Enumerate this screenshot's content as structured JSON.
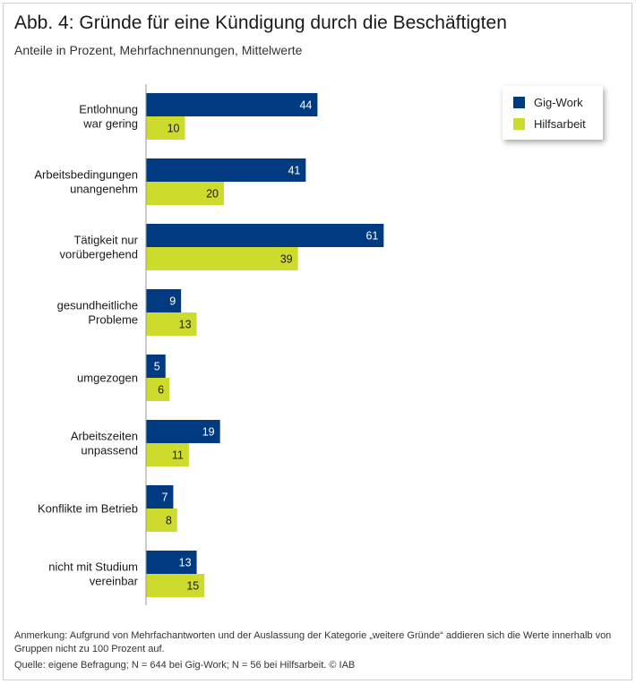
{
  "title": "Abb. 4: Gründe für eine Kündigung durch die Beschäftigten",
  "subtitle": "Anteile in Prozent, Mehrfachnennungen, Mittelwerte",
  "note": "Anmerkung: Aufgrund von Mehrfachantworten und der Auslassung der Kategorie „weitere Gründe“ addieren sich die Werte innerhalb von Gruppen nicht zu 100 Prozent auf.",
  "source": "Quelle: eigene Befragung; N = 644 bei Gig-Work; N = 56 bei Hilfsarbeit. © IAB",
  "colors": {
    "gig": "#003a80",
    "hilfs": "#cddb2d"
  },
  "chart_data": {
    "type": "bar",
    "orientation": "horizontal",
    "title": "Abb. 4: Gründe für eine Kündigung durch die Beschäftigten",
    "subtitle": "Anteile in Prozent, Mehrfachnennungen, Mittelwerte",
    "xlabel": "",
    "ylabel": "",
    "xlim": [
      0,
      100
    ],
    "legend_position": "top-right",
    "categories": [
      [
        "Entlohnung",
        "war gering"
      ],
      [
        "Arbeitsbedingungen",
        "unangenehm"
      ],
      [
        "Tätigkeit nur",
        "vorübergehend"
      ],
      [
        "gesundheitliche",
        "Probleme"
      ],
      [
        "umgezogen"
      ],
      [
        "Arbeitszeiten",
        "unpassend"
      ],
      [
        "Konflikte im Betrieb"
      ],
      [
        "nicht mit Studium",
        "vereinbar"
      ]
    ],
    "series": [
      {
        "name": "Gig-Work",
        "values": [
          44,
          41,
          61,
          9,
          5,
          19,
          7,
          13
        ]
      },
      {
        "name": "Hilfsarbeit",
        "values": [
          10,
          20,
          39,
          13,
          6,
          11,
          8,
          15
        ]
      }
    ]
  }
}
